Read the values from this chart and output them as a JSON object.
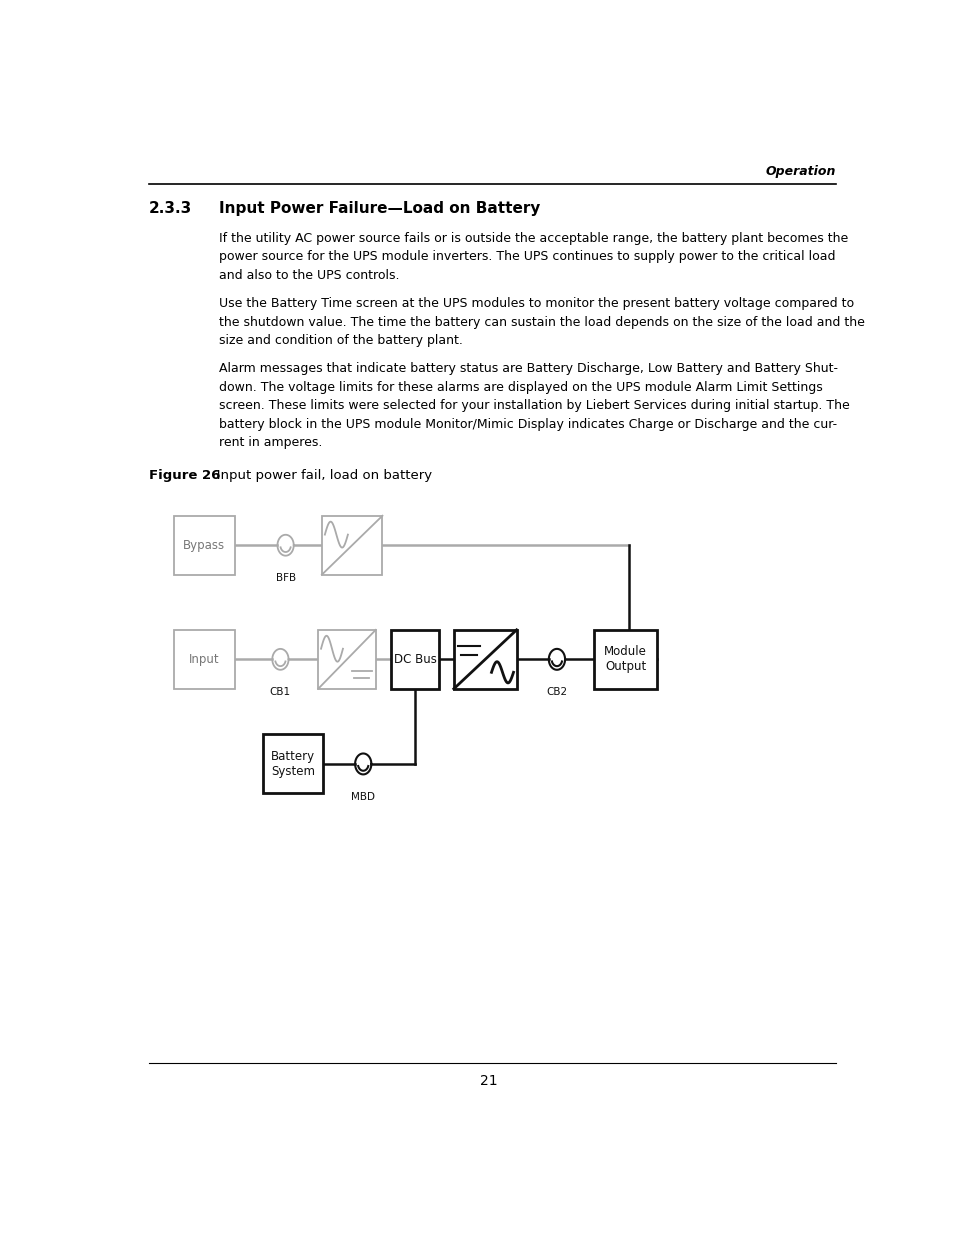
{
  "page_header_right": "Operation",
  "section_number": "2.3.3",
  "section_title": "Input Power Failure—Load on Battery",
  "paragraphs": [
    "If the utility AC power source fails or is outside the acceptable range, the battery plant becomes the\npower source for the UPS module inverters. The UPS continues to supply power to the critical load\nand also to the UPS controls.",
    "Use the Battery Time screen at the UPS modules to monitor the present battery voltage compared to\nthe shutdown value. The time the battery can sustain the load depends on the size of the load and the\nsize and condition of the battery plant.",
    "Alarm messages that indicate battery status are Battery Discharge, Low Battery and Battery Shut-\ndown. The voltage limits for these alarms are displayed on the UPS module Alarm Limit Settings\nscreen. These limits were selected for your installation by Liebert Services during initial startup. The\nbattery block in the UPS module Monitor/Mimic Display indicates Charge or Discharge and the cur-\nrent in amperes."
  ],
  "figure_label_bold": "Figure 26",
  "figure_label_normal": "   Input power fail, load on battery",
  "page_number": "21",
  "bg_color": "#ffffff",
  "text_color": "#000000",
  "gray_color": "#aaaaaa",
  "dark_color": "#111111"
}
